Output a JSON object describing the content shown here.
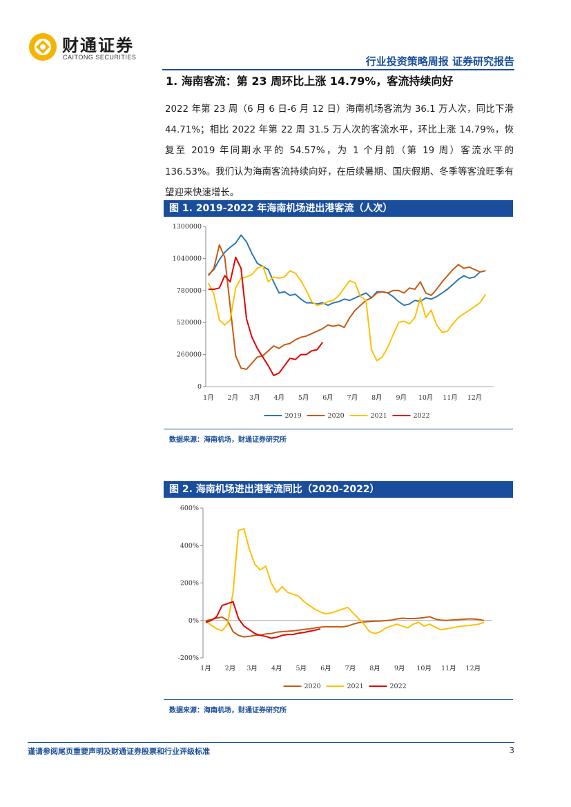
{
  "header": {
    "logo_cn": "财通证券",
    "logo_en": "CAITONG SECURITIES",
    "report_type": "行业投资策略周报 证券研究报告"
  },
  "section": {
    "title": "1. 海南客流：第 23 周环比上涨 14.79%，客流持续向好",
    "paragraph": "2022 年第 23 周（6 月 6 日-6 月 12 日）海南机场客流为 36.1 万人次，同比下滑 44.71%；相比 2022 年第 22 周 31.5 万人次的客流水平，环比上涨 14.79%，恢复至 2019 年同期水平的 54.57%，为 1 个月前（第 19 周）客流水平的 136.53%。我们认为海南客流持续向好，在后续暑期、国庆假期、冬季等客流旺季有望迎来快速增长。"
  },
  "figure1": {
    "title": "图 1. 2019-2022 年海南机场进出港客流（人次）",
    "source": "数据来源：海南机场，财通证券研究所"
  },
  "figure2": {
    "title": "图 2. 海南机场进出港客流同比（2020-2022）",
    "source": "数据来源：海南机场，财通证券研究所"
  },
  "chart_data": [
    {
      "type": "line",
      "title": "图 1. 2019-2022 年海南机场进出港客流（人次）",
      "ylim": [
        0,
        1300000
      ],
      "yticks": [
        "1300000",
        "1040000",
        "780000",
        "520000",
        "260000",
        "0"
      ],
      "ytick_values": [
        1300000,
        1040000,
        780000,
        520000,
        260000,
        0
      ],
      "xticks": [
        "1月",
        "2月",
        "3月",
        "4月",
        "5月",
        "6月",
        "7月",
        "8月",
        "9月",
        "10月",
        "11月",
        "12月"
      ],
      "xtick_weeks": [
        1,
        5.5,
        9.5,
        14,
        18.5,
        23,
        27.5,
        32,
        36.5,
        41,
        45.5,
        50
      ],
      "x_range": [
        0.5,
        53.5
      ],
      "series": [
        {
          "name": "2019",
          "color": "#2e75b6",
          "weeks_start": 1,
          "values": [
            910000,
            950000,
            1030000,
            1090000,
            1130000,
            1165000,
            1230000,
            1175000,
            1080000,
            1000000,
            975000,
            950000,
            850000,
            760000,
            770000,
            740000,
            750000,
            710000,
            680000,
            680000,
            670000,
            680000,
            660000,
            680000,
            690000,
            710000,
            700000,
            720000,
            740000,
            760000,
            720000,
            770000,
            770000,
            760000,
            730000,
            690000,
            660000,
            670000,
            700000,
            690000,
            720000,
            710000,
            730000,
            760000,
            790000,
            830000,
            870000,
            900000,
            880000,
            890000,
            930000,
            940000
          ]
        },
        {
          "name": "2020",
          "color": "#c55a11",
          "weeks_start": 1,
          "values": [
            900000,
            960000,
            1150000,
            1050000,
            650000,
            250000,
            150000,
            140000,
            190000,
            240000,
            250000,
            290000,
            330000,
            310000,
            340000,
            350000,
            380000,
            400000,
            410000,
            430000,
            450000,
            470000,
            500000,
            490000,
            500000,
            480000,
            560000,
            620000,
            660000,
            700000,
            720000,
            760000,
            770000,
            760000,
            780000,
            780000,
            760000,
            800000,
            790000,
            850000,
            760000,
            740000,
            790000,
            850000,
            900000,
            950000,
            990000,
            960000,
            970000,
            950000,
            930000,
            940000
          ]
        },
        {
          "name": "2021",
          "color": "#ffc000",
          "weeks_start": 1,
          "values": [
            840000,
            750000,
            540000,
            500000,
            540000,
            800000,
            880000,
            890000,
            910000,
            960000,
            980000,
            850000,
            890000,
            880000,
            890000,
            940000,
            920000,
            860000,
            780000,
            690000,
            660000,
            670000,
            690000,
            700000,
            740000,
            800000,
            860000,
            840000,
            730000,
            700000,
            300000,
            210000,
            240000,
            320000,
            420000,
            520000,
            530000,
            510000,
            560000,
            720000,
            560000,
            620000,
            500000,
            440000,
            450000,
            510000,
            560000,
            590000,
            620000,
            650000,
            680000,
            750000
          ]
        },
        {
          "name": "2022",
          "color": "#e00000",
          "weeks_start": 1,
          "values": [
            790000,
            790000,
            800000,
            900000,
            850000,
            1050000,
            960000,
            550000,
            400000,
            310000,
            240000,
            170000,
            90000,
            110000,
            170000,
            230000,
            220000,
            260000,
            260000,
            290000,
            300000,
            360000
          ]
        }
      ]
    },
    {
      "type": "line",
      "title": "图 2. 海南机场进出港客流同比（2020-2022）",
      "ylim": [
        -200,
        600
      ],
      "yticks": [
        "600%",
        "400%",
        "200%",
        "0%",
        "-200%"
      ],
      "ytick_values": [
        600,
        400,
        200,
        0,
        -200
      ],
      "xticks": [
        "1月",
        "2月",
        "3月",
        "4月",
        "5月",
        "6月",
        "7月",
        "8月",
        "9月",
        "10月",
        "11月",
        "12月"
      ],
      "xtick_weeks": [
        1,
        5.5,
        9.5,
        14,
        18.5,
        23,
        27.5,
        32,
        36.5,
        41,
        45.5,
        50
      ],
      "x_range": [
        0.5,
        53.5
      ],
      "series": [
        {
          "name": "2020",
          "color": "#c55a11",
          "weeks_start": 1,
          "values": [
            -2,
            5,
            12,
            18,
            0,
            -60,
            -80,
            -88,
            -85,
            -80,
            -78,
            -72,
            -70,
            -63,
            -60,
            -58,
            -56,
            -52,
            -48,
            -45,
            -40,
            -36,
            -33,
            -34,
            -33,
            -35,
            -30,
            -20,
            -12,
            -8,
            -6,
            -4,
            -3,
            -1,
            2,
            8,
            12,
            10,
            10,
            12,
            15,
            20,
            8,
            2,
            0,
            2,
            4,
            6,
            8,
            8,
            5,
            0
          ]
        },
        {
          "name": "2021",
          "color": "#ffc000",
          "weeks_start": 1,
          "values": [
            -5,
            -25,
            -45,
            -55,
            -20,
            150,
            480,
            490,
            380,
            300,
            270,
            290,
            200,
            150,
            180,
            150,
            140,
            130,
            100,
            80,
            60,
            45,
            35,
            40,
            50,
            60,
            70,
            40,
            10,
            -20,
            -60,
            -70,
            -60,
            -40,
            -30,
            -20,
            -30,
            -40,
            -20,
            -10,
            -30,
            -20,
            -35,
            -50,
            -45,
            -40,
            -35,
            -30,
            -28,
            -24,
            -20,
            -10
          ]
        },
        {
          "name": "2022",
          "color": "#e00000",
          "weeks_start": 1,
          "values": [
            -10,
            0,
            20,
            80,
            90,
            100,
            10,
            -30,
            -50,
            -70,
            -80,
            -85,
            -95,
            -90,
            -80,
            -75,
            -75,
            -68,
            -64,
            -58,
            -52,
            -45
          ]
        }
      ]
    }
  ],
  "footer": {
    "disclaimer": "谨请参阅尾页重要声明及财通证券股票和行业评级标准",
    "page_number": "3"
  }
}
